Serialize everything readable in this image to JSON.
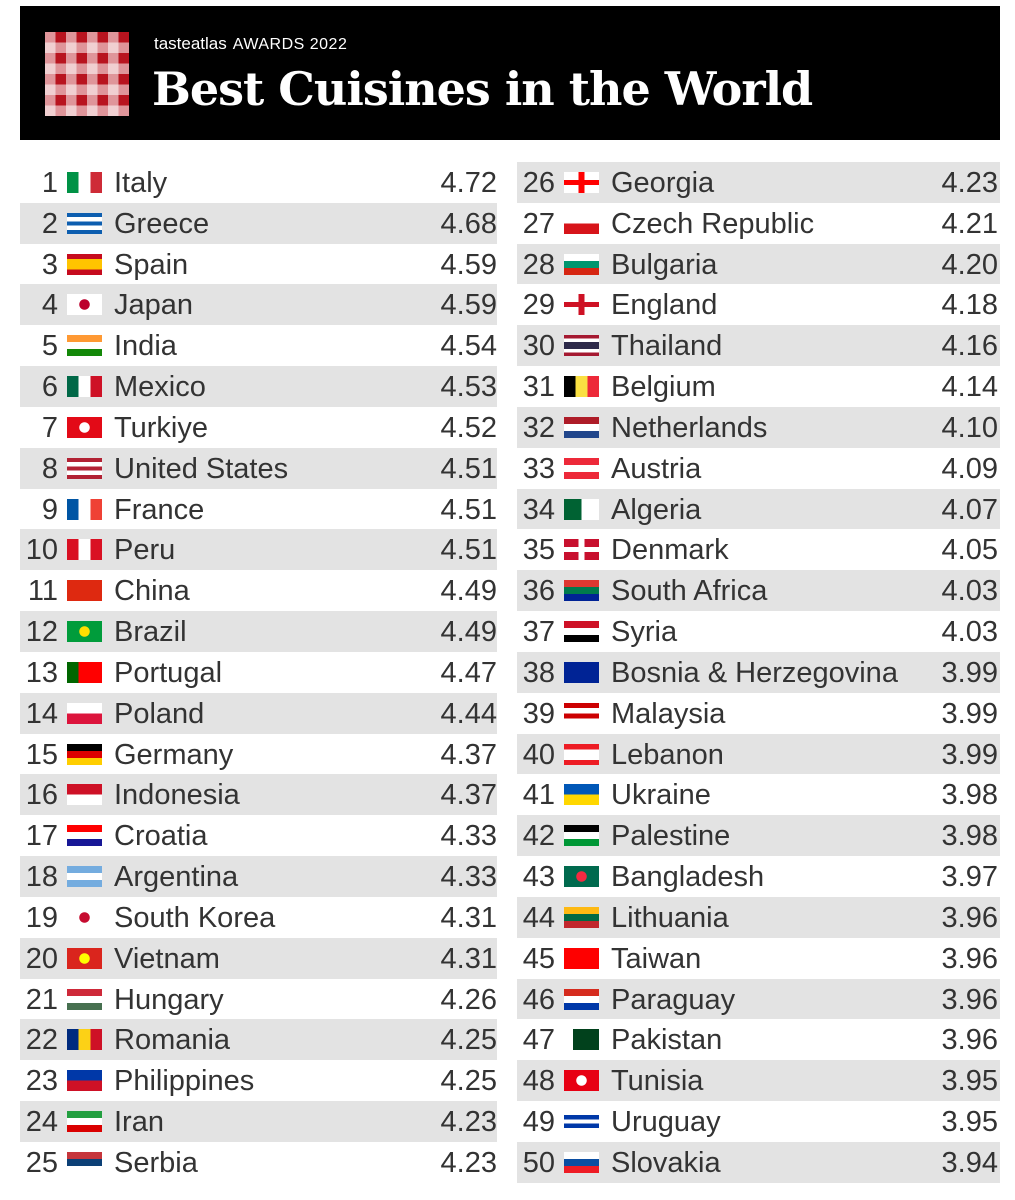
{
  "header": {
    "brand": "tasteatlas",
    "awards": "AWARDS 2022",
    "title": "Best Cuisines in the World"
  },
  "chart_data": {
    "type": "table",
    "columns": [
      "rank",
      "country",
      "score"
    ],
    "rows": [
      {
        "rank": 1,
        "country": "Italy",
        "score": "4.72",
        "flag": "v:#009246,#fff,#ce2b37"
      },
      {
        "rank": 2,
        "country": "Greece",
        "score": "4.68",
        "flag": "h:#0d5eaf,#fff,#0d5eaf,#fff,#0d5eaf"
      },
      {
        "rank": 3,
        "country": "Spain",
        "score": "4.59",
        "flag": "h:#c60b1e,#ffc400,#ffc400,#c60b1e"
      },
      {
        "rank": 4,
        "country": "Japan",
        "score": "4.59",
        "flag": "c:#fff,#bc002d"
      },
      {
        "rank": 5,
        "country": "India",
        "score": "4.54",
        "flag": "h:#ff9933,#fff,#138808"
      },
      {
        "rank": 6,
        "country": "Mexico",
        "score": "4.53",
        "flag": "v:#006847,#fff,#ce1126"
      },
      {
        "rank": 7,
        "country": "Turkiye",
        "score": "4.52",
        "flag": "c:#e30a17,#fff"
      },
      {
        "rank": 8,
        "country": "United States",
        "score": "4.51",
        "flag": "h:#b22234,#fff,#b22234,#fff,#b22234"
      },
      {
        "rank": 9,
        "country": "France",
        "score": "4.51",
        "flag": "v:#0055a4,#fff,#ef4135"
      },
      {
        "rank": 10,
        "country": "Peru",
        "score": "4.51",
        "flag": "v:#d91023,#fff,#d91023"
      },
      {
        "rank": 11,
        "country": "China",
        "score": "4.49",
        "flag": "h:#de2910"
      },
      {
        "rank": 12,
        "country": "Brazil",
        "score": "4.49",
        "flag": "c:#009c3b,#ffdf00"
      },
      {
        "rank": 13,
        "country": "Portugal",
        "score": "4.47",
        "flag": "v:#006600,#ff0000,#ff0000"
      },
      {
        "rank": 14,
        "country": "Poland",
        "score": "4.44",
        "flag": "h:#fff,#dc143c"
      },
      {
        "rank": 15,
        "country": "Germany",
        "score": "4.37",
        "flag": "h:#000,#dd0000,#ffce00"
      },
      {
        "rank": 16,
        "country": "Indonesia",
        "score": "4.37",
        "flag": "h:#ce1126,#fff"
      },
      {
        "rank": 17,
        "country": "Croatia",
        "score": "4.33",
        "flag": "h:#ff0000,#fff,#171796"
      },
      {
        "rank": 18,
        "country": "Argentina",
        "score": "4.33",
        "flag": "h:#74acdf,#fff,#74acdf"
      },
      {
        "rank": 19,
        "country": "South Korea",
        "score": "4.31",
        "flag": "c:#fff,#c60c30"
      },
      {
        "rank": 20,
        "country": "Vietnam",
        "score": "4.31",
        "flag": "c:#da251d,#ffff00"
      },
      {
        "rank": 21,
        "country": "Hungary",
        "score": "4.26",
        "flag": "h:#ce2939,#fff,#477050"
      },
      {
        "rank": 22,
        "country": "Romania",
        "score": "4.25",
        "flag": "v:#002b7f,#fcd116,#ce1126"
      },
      {
        "rank": 23,
        "country": "Philippines",
        "score": "4.25",
        "flag": "h:#0038a8,#ce1126"
      },
      {
        "rank": 24,
        "country": "Iran",
        "score": "4.23",
        "flag": "h:#239f40,#fff,#da0000"
      },
      {
        "rank": 25,
        "country": "Serbia",
        "score": "4.23",
        "flag": "h:#c6363c,#0c4076,#fff"
      },
      {
        "rank": 26,
        "country": "Georgia",
        "score": "4.23",
        "flag": "x:#fff,#ff0000"
      },
      {
        "rank": 27,
        "country": "Czech Republic",
        "score": "4.21",
        "flag": "h:#fff,#d7141a"
      },
      {
        "rank": 28,
        "country": "Bulgaria",
        "score": "4.20",
        "flag": "h:#fff,#00966e,#d62612"
      },
      {
        "rank": 29,
        "country": "England",
        "score": "4.18",
        "flag": "x:#fff,#ce1124"
      },
      {
        "rank": 30,
        "country": "Thailand",
        "score": "4.16",
        "flag": "h:#a51931,#fff,#2d2a4a,#2d2a4a,#fff,#a51931"
      },
      {
        "rank": 31,
        "country": "Belgium",
        "score": "4.14",
        "flag": "v:#000,#fae042,#ed2939"
      },
      {
        "rank": 32,
        "country": "Netherlands",
        "score": "4.10",
        "flag": "h:#ae1c28,#fff,#21468b"
      },
      {
        "rank": 33,
        "country": "Austria",
        "score": "4.09",
        "flag": "h:#ed2939,#fff,#ed2939"
      },
      {
        "rank": 34,
        "country": "Algeria",
        "score": "4.07",
        "flag": "v:#006233,#fff"
      },
      {
        "rank": 35,
        "country": "Denmark",
        "score": "4.05",
        "flag": "x:#c8102e,#fff"
      },
      {
        "rank": 36,
        "country": "South Africa",
        "score": "4.03",
        "flag": "h:#de3831,#007a4d,#002395"
      },
      {
        "rank": 37,
        "country": "Syria",
        "score": "4.03",
        "flag": "h:#ce1126,#fff,#000"
      },
      {
        "rank": 38,
        "country": "Bosnia & Herzegovina",
        "score": "3.99",
        "flag": "h:#002395"
      },
      {
        "rank": 39,
        "country": "Malaysia",
        "score": "3.99",
        "flag": "h:#cc0001,#fff,#cc0001,#fff"
      },
      {
        "rank": 40,
        "country": "Lebanon",
        "score": "3.99",
        "flag": "h:#ed1c24,#fff,#fff,#ed1c24"
      },
      {
        "rank": 41,
        "country": "Ukraine",
        "score": "3.98",
        "flag": "h:#0057b7,#ffd700"
      },
      {
        "rank": 42,
        "country": "Palestine",
        "score": "3.98",
        "flag": "h:#000,#fff,#009736"
      },
      {
        "rank": 43,
        "country": "Bangladesh",
        "score": "3.97",
        "flag": "c:#006a4e,#f42a41"
      },
      {
        "rank": 44,
        "country": "Lithuania",
        "score": "3.96",
        "flag": "h:#fdb913,#006a44,#c1272d"
      },
      {
        "rank": 45,
        "country": "Taiwan",
        "score": "3.96",
        "flag": "h:#fe0000"
      },
      {
        "rank": 46,
        "country": "Paraguay",
        "score": "3.96",
        "flag": "h:#d52b1e,#fff,#0038a8"
      },
      {
        "rank": 47,
        "country": "Pakistan",
        "score": "3.96",
        "flag": "v:#fff,#01411c,#01411c,#01411c"
      },
      {
        "rank": 48,
        "country": "Tunisia",
        "score": "3.95",
        "flag": "c:#e70013,#fff"
      },
      {
        "rank": 49,
        "country": "Uruguay",
        "score": "3.95",
        "flag": "h:#fff,#0038a8,#fff,#0038a8,#fff"
      },
      {
        "rank": 50,
        "country": "Slovakia",
        "score": "3.94",
        "flag": "h:#fff,#0b4ea2,#ee1c25"
      }
    ]
  }
}
